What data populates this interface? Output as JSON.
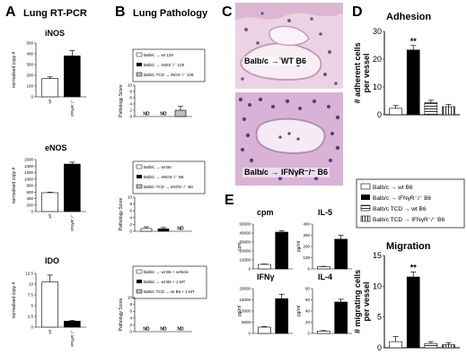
{
  "panels": {
    "A": {
      "letter": "A",
      "title": "Lung RT-PCR"
    },
    "B": {
      "letter": "B",
      "title": "Lung Pathology"
    },
    "C": {
      "letter": "C"
    },
    "D": {
      "letter": "D"
    },
    "E": {
      "letter": "E"
    }
  },
  "micrographs": [
    {
      "caption": "Balb/c → WT B6"
    },
    {
      "caption": "Balb/c → IFNγR⁻/⁻ B6"
    }
  ],
  "legends": {
    "B1": [
      "Balb/c → wt 129",
      "Balb/c → iNOS⁻/⁻ 129",
      "Balb/c TCD → iNOS⁻/⁻ 129"
    ],
    "B2": [
      "Balb/c → wt B6",
      "Balb/c → eNOS⁻/⁻ B6",
      "Balb/c TCD → eNOS⁻/⁻ B6"
    ],
    "B3": [
      "Balb/c → wt B6 + vehicle",
      "Balb/c → wt B6 + 1-MT",
      "Balb/c TCD → wt B6 + 1-MT"
    ],
    "D": [
      "Balb/c → wt B6",
      "Balb/c → IFNγR⁻/⁻ B6",
      "Balb/c TCD → wt B6",
      "Balb/c TCD → IFNγR⁻/⁻ B6"
    ]
  },
  "colors": {
    "black": "#000000",
    "white": "#ffffff",
    "gray": "#bdbdbd",
    "tissue": "#e3c6dc",
    "nuclei": "#5a3f8c"
  },
  "chart_data": [
    {
      "id": "A-iNOS",
      "type": "bar",
      "title": "iNOS",
      "categories": [
        "wt",
        "IFNγR⁻/⁻"
      ],
      "values": [
        170,
        380
      ],
      "errors": [
        15,
        50
      ],
      "ylabel": "normalised copy #",
      "ylim": [
        0,
        500
      ],
      "yticks": [
        0,
        100,
        200,
        300,
        400,
        500
      ],
      "fills": [
        "white",
        "black"
      ]
    },
    {
      "id": "A-eNOS",
      "type": "bar",
      "title": "eNOS",
      "categories": [
        "wt",
        "IFNγR⁻/⁻"
      ],
      "values": [
        580,
        1460
      ],
      "errors": [
        15,
        60
      ],
      "ylabel": "normalised copy #",
      "ylim": [
        0,
        1600
      ],
      "yticks": [
        0,
        200,
        400,
        600,
        800,
        1000,
        1200,
        1400,
        1600
      ],
      "fills": [
        "white",
        "black"
      ]
    },
    {
      "id": "A-IDO",
      "type": "bar",
      "title": "IDO",
      "categories": [
        "wt",
        "IFNγR⁻/⁻"
      ],
      "values": [
        10.5,
        1.4
      ],
      "errors": [
        1.6,
        0.2
      ],
      "ylabel": "normalised copy #",
      "ylim": [
        0,
        12.5
      ],
      "yticks": [
        0,
        2.5,
        5,
        7.5,
        10,
        12.5
      ],
      "fills": [
        "white",
        "black"
      ]
    },
    {
      "id": "B-1",
      "type": "bar",
      "categories": [
        "",
        "",
        ""
      ],
      "values": [
        null,
        null,
        2
      ],
      "errors": [
        0,
        0,
        1.2
      ],
      "labels": [
        "ND",
        "ND",
        ""
      ],
      "ylabel": "Pathology Score",
      "ylim": [
        0,
        10
      ],
      "yticks": [
        0,
        2,
        4,
        6,
        8,
        10
      ],
      "fills": [
        "white",
        "black",
        "gray"
      ]
    },
    {
      "id": "B-2",
      "type": "bar",
      "categories": [
        "",
        "",
        ""
      ],
      "values": [
        0.8,
        0.7,
        null
      ],
      "errors": [
        0.5,
        0.4,
        0
      ],
      "labels": [
        "",
        "",
        "ND"
      ],
      "ylabel": "Pathology Score",
      "ylim": [
        0,
        10
      ],
      "yticks": [
        0,
        2,
        4,
        6,
        8,
        10
      ],
      "fills": [
        "white",
        "black",
        "gray"
      ]
    },
    {
      "id": "B-3",
      "type": "bar",
      "categories": [
        "",
        "",
        ""
      ],
      "values": [
        null,
        null,
        null
      ],
      "errors": [
        0,
        0,
        0
      ],
      "labels": [
        "ND",
        "ND",
        "ND"
      ],
      "ylabel": "Pathology Score",
      "ylim": [
        0,
        10
      ],
      "yticks": [
        0,
        2,
        4,
        6,
        8,
        10
      ],
      "fills": [
        "white",
        "black",
        "gray"
      ]
    },
    {
      "id": "D-adhesion",
      "type": "bar",
      "title": "Adhesion",
      "categories": [
        "",
        "",
        "",
        ""
      ],
      "values": [
        2.3,
        23.3,
        4.3,
        2.9
      ],
      "errors": [
        1.0,
        1.6,
        0.9,
        0.8
      ],
      "annotations": [
        "",
        "**",
        "",
        ""
      ],
      "ylabel": "# adherent cells per vessel",
      "ylim": [
        0,
        30
      ],
      "yticks": [
        0,
        10,
        20,
        30
      ],
      "fills": [
        "white",
        "black",
        "hstripe",
        "vstripe"
      ]
    },
    {
      "id": "D-migration",
      "type": "bar",
      "title": "Migration",
      "categories": [
        "",
        "",
        "",
        ""
      ],
      "values": [
        1.0,
        11.5,
        0.7,
        0.5
      ],
      "errors": [
        0.8,
        0.8,
        0.3,
        0.3
      ],
      "annotations": [
        "",
        "**",
        "",
        ""
      ],
      "ylabel": "# migrating cells per vessel",
      "ylim": [
        0,
        15
      ],
      "yticks": [
        0,
        5,
        10,
        15
      ],
      "fills": [
        "white",
        "black",
        "hstripe",
        "vstripe"
      ]
    },
    {
      "id": "E-cpm",
      "type": "bar",
      "title": "cpm",
      "categories": [
        "",
        ""
      ],
      "values": [
        5000,
        41000
      ],
      "errors": [
        400,
        1500
      ],
      "ylabel": "cpm",
      "ylim": [
        0,
        50000
      ],
      "yticks": [
        0,
        10000,
        20000,
        30000,
        40000,
        50000
      ],
      "fills": [
        "white",
        "black"
      ]
    },
    {
      "id": "E-IL5",
      "type": "bar",
      "title": "IL-5",
      "categories": [
        "",
        ""
      ],
      "values": [
        20,
        265
      ],
      "errors": [
        3,
        35
      ],
      "ylabel": "pg/ml",
      "ylim": [
        0,
        400
      ],
      "yticks": [
        0,
        100,
        200,
        300,
        400
      ],
      "fills": [
        "white",
        "black"
      ]
    },
    {
      "id": "E-IFNg",
      "type": "bar",
      "title": "IFNγ",
      "categories": [
        "",
        ""
      ],
      "values": [
        2800,
        15500
      ],
      "errors": [
        300,
        2000
      ],
      "ylabel": "pg/ml",
      "ylim": [
        0,
        20000
      ],
      "yticks": [
        0,
        5000,
        10000,
        15000,
        20000
      ],
      "fills": [
        "white",
        "black"
      ]
    },
    {
      "id": "E-IL4",
      "type": "bar",
      "title": "IL-4",
      "categories": [
        "",
        ""
      ],
      "values": [
        4,
        56
      ],
      "errors": [
        1,
        5
      ],
      "ylabel": "pg/ml",
      "ylim": [
        0,
        80
      ],
      "yticks": [
        0,
        20,
        40,
        60,
        80
      ],
      "fills": [
        "white",
        "black"
      ]
    }
  ]
}
